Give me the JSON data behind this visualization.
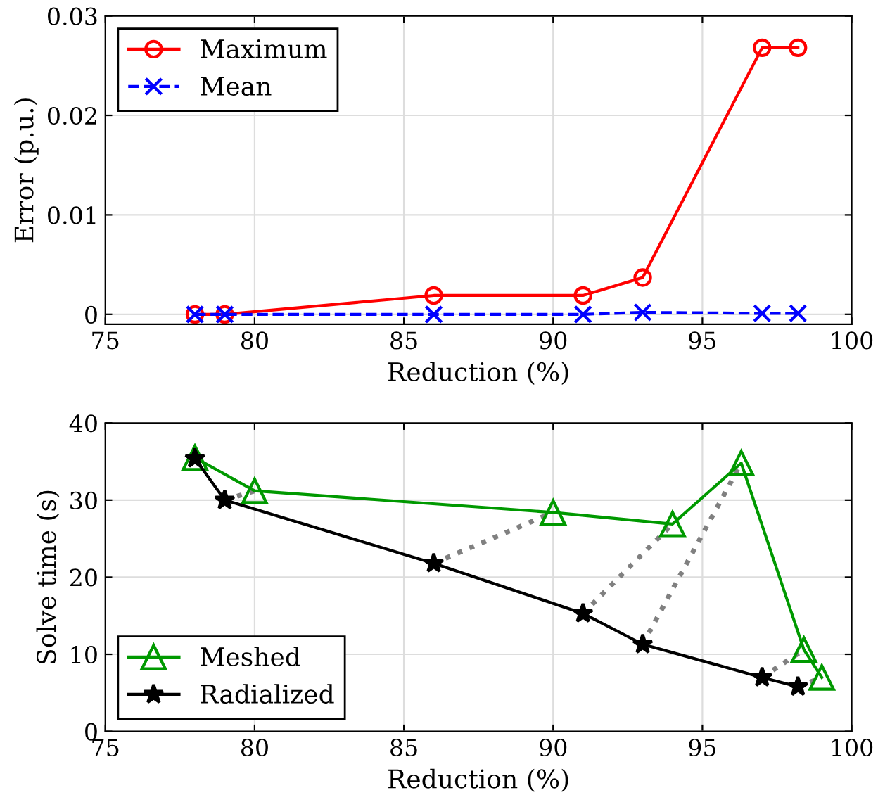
{
  "chart_data": [
    {
      "type": "line",
      "xlabel": "Reduction (%)",
      "ylabel": "Error (p.u.)",
      "xlim": [
        75,
        100
      ],
      "xticks": [
        75,
        80,
        85,
        90,
        95,
        100
      ],
      "ylim": [
        -0.001,
        0.03
      ],
      "yticks": [
        0,
        0.01,
        0.02,
        0.03
      ],
      "grid": true,
      "legend": "top left",
      "x": [
        78,
        79,
        86,
        91,
        93,
        97,
        98.2
      ],
      "series": [
        {
          "name": "Maximum",
          "color": "#ff0000",
          "marker": "circle",
          "line_style": "solid",
          "values": [
            0,
            0,
            0.0019,
            0.0019,
            0.0037,
            0.0268,
            0.0268
          ]
        },
        {
          "name": "Mean",
          "color": "#0000ff",
          "marker": "cross",
          "line_style": "dashed",
          "values": [
            0,
            0,
            0,
            0,
            0.0002,
            0.0001,
            0.0001
          ]
        }
      ]
    },
    {
      "type": "line",
      "xlabel": "Reduction (%)",
      "ylabel": "Solve time (s)",
      "xlim": [
        75,
        100
      ],
      "xticks": [
        75,
        80,
        85,
        90,
        95,
        100
      ],
      "ylim": [
        0,
        40
      ],
      "yticks": [
        0,
        10,
        20,
        30,
        40
      ],
      "grid": true,
      "legend": "bottom left",
      "series": [
        {
          "color": "#808080",
          "marker": "none",
          "line_style": "dotted",
          "x": [
            79,
            80
          ],
          "values": [
            30,
            31.2
          ]
        },
        {
          "color": "#808080",
          "marker": "none",
          "line_style": "dotted",
          "x": [
            86,
            90
          ],
          "values": [
            21.8,
            28.4
          ]
        },
        {
          "color": "#808080",
          "marker": "none",
          "line_style": "dotted",
          "x": [
            91,
            94
          ],
          "values": [
            15.3,
            26.9
          ]
        },
        {
          "color": "#808080",
          "marker": "none",
          "line_style": "dotted",
          "x": [
            93,
            96.3
          ],
          "values": [
            11.3,
            34.8
          ]
        },
        {
          "color": "#808080",
          "marker": "none",
          "line_style": "dotted",
          "x": [
            97,
            98.4
          ],
          "values": [
            7,
            10.6
          ]
        },
        {
          "color": "#808080",
          "marker": "none",
          "line_style": "dotted",
          "x": [
            98.2,
            99
          ],
          "values": [
            5.8,
            7
          ]
        },
        {
          "name": "Meshed",
          "color": "#009900",
          "marker": "triangle",
          "line_style": "solid",
          "x": [
            78,
            80,
            90,
            94,
            96.3,
            98.4,
            99
          ],
          "values": [
            35.5,
            31.2,
            28.4,
            26.9,
            34.8,
            10.6,
            7
          ]
        },
        {
          "name": "Radialized",
          "color": "#000000",
          "marker": "star",
          "line_style": "solid",
          "x": [
            78,
            79,
            86,
            91,
            93,
            97,
            98.2
          ],
          "values": [
            35.4,
            30,
            21.8,
            15.3,
            11.3,
            7,
            5.8
          ]
        }
      ]
    }
  ]
}
